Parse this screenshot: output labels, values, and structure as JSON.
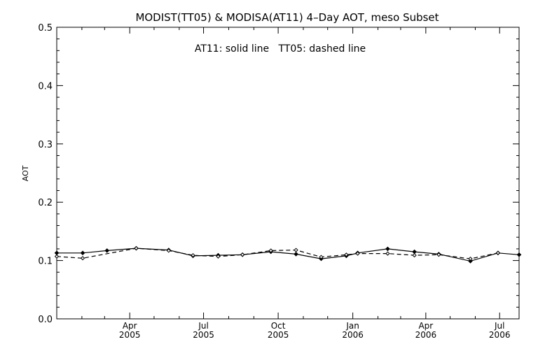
{
  "chart_data": {
    "type": "line",
    "title": "MODIST(TT05) & MODISA(AT11) 4–Day AOT, meso Subset",
    "annotation": "AT11: solid line   TT05: dashed line",
    "xlabel": "",
    "ylabel": "AOT",
    "ylim": [
      0.0,
      0.5
    ],
    "yticks": [
      "0.0",
      "0.1",
      "0.2",
      "0.3",
      "0.4",
      "0.5"
    ],
    "xlim": [
      "2005-01-01",
      "2006-07-25"
    ],
    "xticks": [
      {
        "date": "2005-04-01",
        "month": "Apr",
        "year": "2005"
      },
      {
        "date": "2005-07-01",
        "month": "Jul",
        "year": "2005"
      },
      {
        "date": "2005-10-01",
        "month": "Oct",
        "year": "2005"
      },
      {
        "date": "2006-01-01",
        "month": "Jan",
        "year": "2006"
      },
      {
        "date": "2006-04-01",
        "month": "Apr",
        "year": "2006"
      },
      {
        "date": "2006-07-01",
        "month": "Jul",
        "year": "2006"
      }
    ],
    "grid": false,
    "series": [
      {
        "name": "AT11",
        "style": "solid",
        "x": [
          "2005-01-01",
          "2005-02-02",
          "2005-03-04",
          "2005-04-09",
          "2005-05-19",
          "2005-06-18",
          "2005-07-19",
          "2005-08-18",
          "2005-09-22",
          "2005-10-23",
          "2005-11-23",
          "2005-12-24",
          "2006-01-07",
          "2006-02-13",
          "2006-03-18",
          "2006-04-17",
          "2006-05-26",
          "2006-06-29",
          "2006-07-25"
        ],
        "y": [
          0.113,
          0.113,
          0.117,
          0.121,
          0.118,
          0.108,
          0.109,
          0.11,
          0.115,
          0.111,
          0.103,
          0.108,
          0.113,
          0.12,
          0.115,
          0.111,
          0.099,
          0.113,
          0.11
        ]
      },
      {
        "name": "TT05",
        "style": "dashed",
        "x": [
          "2005-01-01",
          "2005-02-02",
          "2005-04-09",
          "2005-05-19",
          "2005-06-18",
          "2005-07-19",
          "2005-08-18",
          "2005-09-22",
          "2005-10-23",
          "2005-11-23",
          "2005-12-24",
          "2006-01-07",
          "2006-02-13",
          "2006-03-18",
          "2006-04-17",
          "2006-05-26",
          "2006-06-29"
        ],
        "y": [
          0.107,
          0.104,
          0.121,
          0.117,
          0.109,
          0.107,
          0.11,
          0.117,
          0.118,
          0.106,
          0.11,
          0.112,
          0.112,
          0.109,
          0.11,
          0.103,
          0.113
        ]
      }
    ],
    "colors": {
      "axis": "#000000",
      "background": "#ffffff",
      "lines": "#000000"
    }
  }
}
